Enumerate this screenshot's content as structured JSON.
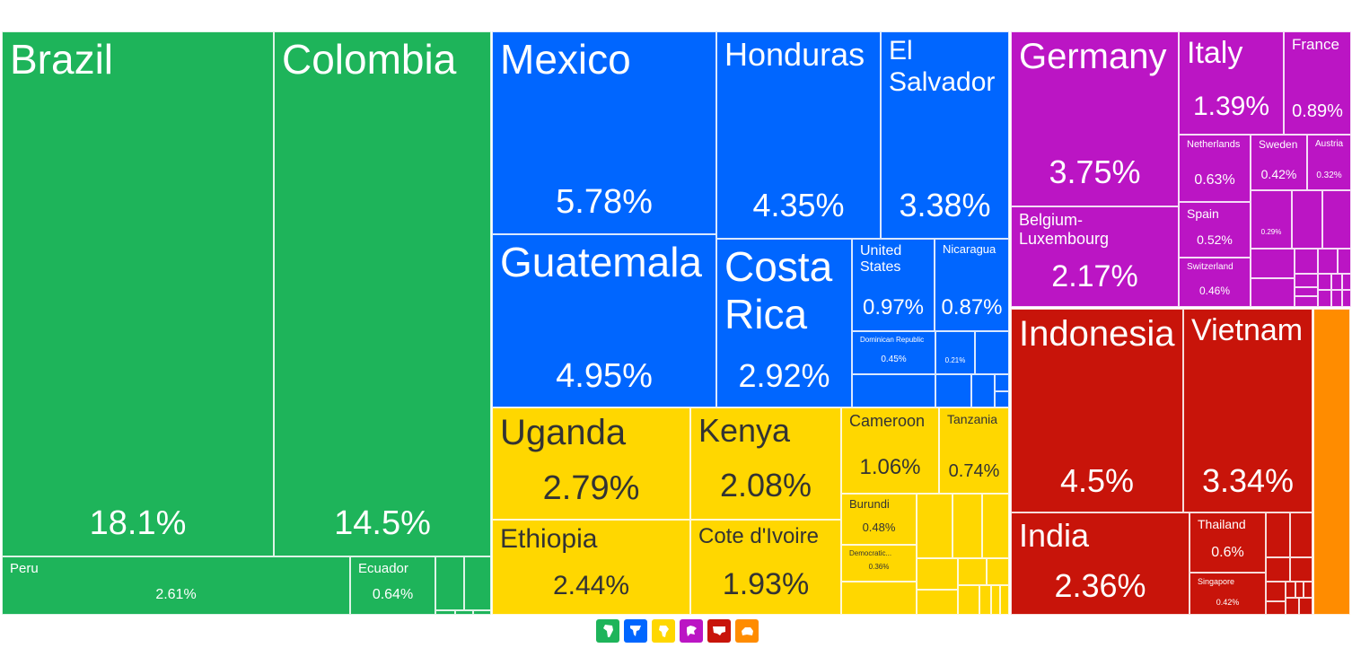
{
  "chart_data": {
    "type": "treemap",
    "unit": "%",
    "groups": [
      {
        "name": "South America",
        "color": "#1eb45a",
        "items": [
          {
            "name": "Brazil",
            "value": 18.1,
            "label": "18.1%"
          },
          {
            "name": "Colombia",
            "value": 14.5,
            "label": "14.5%"
          },
          {
            "name": "Peru",
            "value": 2.61,
            "label": "2.61%"
          },
          {
            "name": "Ecuador",
            "value": 0.64,
            "label": "0.64%"
          }
        ]
      },
      {
        "name": "North America",
        "color": "#0066ff",
        "items": [
          {
            "name": "Mexico",
            "value": 5.78,
            "label": "5.78%"
          },
          {
            "name": "Honduras",
            "value": 4.35,
            "label": "4.35%"
          },
          {
            "name": "El Salvador",
            "value": 3.38,
            "label": "3.38%"
          },
          {
            "name": "Guatemala",
            "value": 4.95,
            "label": "4.95%"
          },
          {
            "name": "Costa Rica",
            "value": 2.92,
            "label": "2.92%"
          },
          {
            "name": "United States",
            "value": 0.97,
            "label": "0.97%"
          },
          {
            "name": "Nicaragua",
            "value": 0.87,
            "label": "0.87%"
          },
          {
            "name": "Dominican Republic",
            "value": 0.45,
            "label": "0.45%"
          },
          {
            "name": "",
            "value": 0.21,
            "label": "0.21%"
          }
        ]
      },
      {
        "name": "Africa",
        "color": "#ffd700",
        "items": [
          {
            "name": "Uganda",
            "value": 2.79,
            "label": "2.79%"
          },
          {
            "name": "Kenya",
            "value": 2.08,
            "label": "2.08%"
          },
          {
            "name": "Cameroon",
            "value": 1.06,
            "label": "1.06%"
          },
          {
            "name": "Tanzania",
            "value": 0.74,
            "label": "0.74%"
          },
          {
            "name": "Ethiopia",
            "value": 2.44,
            "label": "2.44%"
          },
          {
            "name": "Cote d'Ivoire",
            "value": 1.93,
            "label": "1.93%"
          },
          {
            "name": "Burundi",
            "value": 0.48,
            "label": "0.48%"
          },
          {
            "name": "Democratic...",
            "value": 0.36,
            "label": "0.36%"
          }
        ]
      },
      {
        "name": "Europe",
        "color": "#bb15c4",
        "items": [
          {
            "name": "Germany",
            "value": 3.75,
            "label": "3.75%"
          },
          {
            "name": "Italy",
            "value": 1.39,
            "label": "1.39%"
          },
          {
            "name": "France",
            "value": 0.89,
            "label": "0.89%"
          },
          {
            "name": "Netherlands",
            "value": 0.63,
            "label": "0.63%"
          },
          {
            "name": "Sweden",
            "value": 0.42,
            "label": "0.42%"
          },
          {
            "name": "Austria",
            "value": 0.32,
            "label": "0.32%"
          },
          {
            "name": "Belgium-Luxembourg",
            "value": 2.17,
            "label": "2.17%"
          },
          {
            "name": "Spain",
            "value": 0.52,
            "label": "0.52%"
          },
          {
            "name": "",
            "value": 0.29,
            "label": "0.29%"
          },
          {
            "name": "Switzerland",
            "value": 0.46,
            "label": "0.46%"
          }
        ]
      },
      {
        "name": "Asia",
        "color": "#c8140a",
        "items": [
          {
            "name": "Indonesia",
            "value": 4.5,
            "label": "4.5%"
          },
          {
            "name": "Vietnam",
            "value": 3.34,
            "label": "3.34%"
          },
          {
            "name": "India",
            "value": 2.36,
            "label": "2.36%"
          },
          {
            "name": "Thailand",
            "value": 0.6,
            "label": "0.6%"
          },
          {
            "name": "Singapore",
            "value": 0.42,
            "label": "0.42%"
          }
        ]
      },
      {
        "name": "Oceania",
        "color": "#ff8c00",
        "items": []
      }
    ]
  },
  "legend": [
    {
      "name": "south-america-legend-icon",
      "color": "#1eb45a"
    },
    {
      "name": "north-america-legend-icon",
      "color": "#0066ff"
    },
    {
      "name": "africa-legend-icon",
      "color": "#ffd700"
    },
    {
      "name": "europe-legend-icon",
      "color": "#bb15c4"
    },
    {
      "name": "asia-legend-icon",
      "color": "#c8140a"
    },
    {
      "name": "oceania-legend-icon",
      "color": "#ff8c00"
    }
  ]
}
